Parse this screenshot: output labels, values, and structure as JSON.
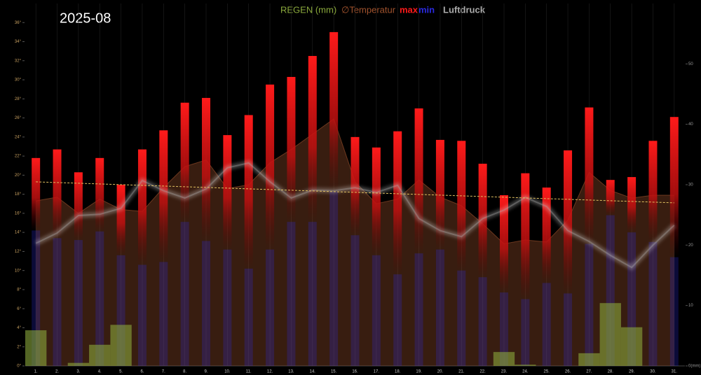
{
  "chart_data": {
    "type": "weather",
    "title": "2025-08",
    "categories": [
      "1.",
      "2.",
      "3.",
      "4.",
      "5.",
      "6.",
      "7.",
      "8.",
      "9.",
      "10.",
      "11.",
      "12.",
      "13.",
      "14.",
      "15.",
      "16.",
      "17.",
      "18.",
      "19.",
      "20.",
      "21.",
      "22.",
      "23.",
      "24.",
      "25.",
      "26.",
      "27.",
      "28.",
      "29.",
      "30.",
      "31."
    ],
    "series": [
      {
        "name": "REGEN (mm)",
        "kind": "rain",
        "axis": "y2",
        "color": "#8aa83c",
        "values": [
          5.9,
          0,
          0.5,
          3.5,
          6.8,
          0,
          0,
          0,
          0,
          0,
          0,
          0,
          0,
          0,
          0,
          0,
          0,
          0,
          0,
          0,
          0,
          0,
          2.3,
          0.2,
          0,
          0,
          2.1,
          10.4,
          6.4,
          0,
          0
        ]
      },
      {
        "name": "∅Temperatur",
        "kind": "avg",
        "color": "#a0522d",
        "values": [
          17.3,
          17.7,
          16.0,
          17.5,
          16.4,
          16.2,
          18.7,
          20.9,
          21.6,
          18.6,
          19.0,
          21.3,
          22.7,
          24.3,
          25.9,
          19.3,
          17.0,
          17.5,
          19.5,
          17.7,
          16.8,
          14.9,
          12.8,
          13.2,
          13.0,
          15.3,
          20.3,
          18.4,
          17.6,
          17.9,
          17.9
        ]
      },
      {
        "name": "max",
        "kind": "max",
        "color": "#ff1a1a",
        "values": [
          21.8,
          22.7,
          20.3,
          21.8,
          19.0,
          22.7,
          24.7,
          27.6,
          28.1,
          24.2,
          26.3,
          29.5,
          30.3,
          32.5,
          35.0,
          24.0,
          22.9,
          24.6,
          27.0,
          23.7,
          23.6,
          21.2,
          17.9,
          20.2,
          18.7,
          22.6,
          27.1,
          19.5,
          19.8,
          23.6,
          26.1
        ]
      },
      {
        "name": "min",
        "kind": "min",
        "color": "#2a2ae0",
        "values": [
          14.2,
          13.4,
          13.2,
          14.1,
          11.6,
          10.6,
          10.9,
          15.1,
          13.1,
          12.2,
          10.2,
          12.2,
          15.1,
          15.1,
          18.3,
          13.7,
          11.6,
          9.6,
          11.8,
          12.2,
          10.0,
          9.3,
          7.7,
          7.0,
          8.7,
          7.6,
          12.8,
          15.8,
          14.0,
          13.0,
          11.4
        ]
      },
      {
        "name": "Luftdruck",
        "kind": "pressure",
        "axis": "y2",
        "color": "#aaaaaa",
        "values": [
          20.3,
          22.0,
          24.9,
          25.1,
          26.1,
          30.7,
          29.0,
          27.8,
          29.3,
          32.8,
          33.6,
          30.5,
          27.8,
          29.1,
          29.0,
          29.5,
          28.7,
          29.9,
          24.4,
          22.4,
          21.4,
          24.4,
          25.8,
          27.9,
          26.4,
          22.4,
          20.6,
          18.3,
          16.3,
          20.0,
          23.3
        ]
      }
    ],
    "trend": [
      19.3,
      17.1
    ],
    "trend_color": "#e0c060",
    "ylim": [
      0,
      38
    ],
    "yticks": [
      {
        "value": 0,
        "label": "0°"
      },
      {
        "value": 2,
        "label": "2°"
      },
      {
        "value": 4,
        "label": "4°"
      },
      {
        "value": 6,
        "label": "6°"
      },
      {
        "value": 8,
        "label": "8°"
      },
      {
        "value": 10,
        "label": "10°"
      },
      {
        "value": 12,
        "label": "12°"
      },
      {
        "value": 14,
        "label": "14°"
      },
      {
        "value": 16,
        "label": "16°"
      },
      {
        "value": 18,
        "label": "18°"
      },
      {
        "value": 20,
        "label": "20°"
      },
      {
        "value": 22,
        "label": "22°"
      },
      {
        "value": 24,
        "label": "24°"
      },
      {
        "value": 26,
        "label": "26°"
      },
      {
        "value": 28,
        "label": "28°"
      },
      {
        "value": 30,
        "label": "30°"
      },
      {
        "value": 32,
        "label": "32°"
      },
      {
        "value": 34,
        "label": "34°"
      },
      {
        "value": 36,
        "label": "36°"
      }
    ],
    "y2lim": [
      0,
      60
    ],
    "y2ticks": [
      {
        "value": 0,
        "label": "0(mm)"
      },
      10,
      20,
      30,
      40,
      50
    ]
  }
}
